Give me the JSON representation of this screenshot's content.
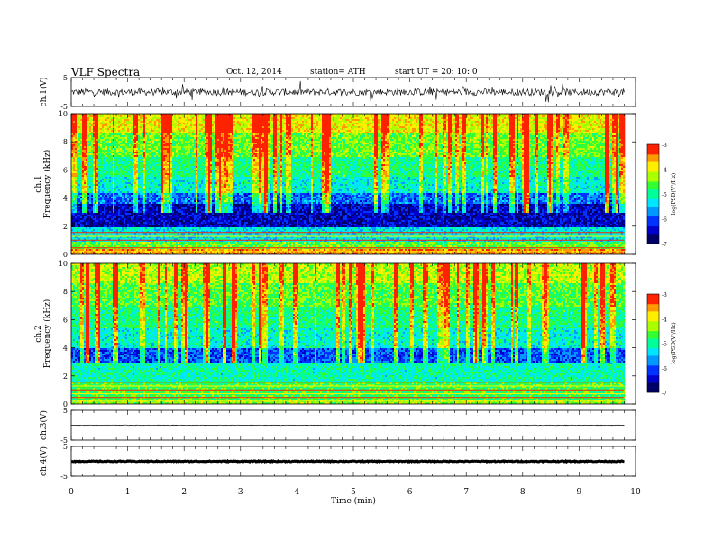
{
  "header": {
    "title": "VLF  Spectra",
    "date": "Oct. 12, 2014",
    "station": "station= ATH",
    "start": "start  UT  =   20: 10: 0"
  },
  "chart_data": [
    {
      "id": "ch1-waveform",
      "type": "line",
      "ylabel": "ch.1(V)",
      "ylim": [
        -5,
        5
      ],
      "yticks": [
        "5",
        "-5"
      ],
      "xlim": [
        0,
        10
      ],
      "data_xrange": [
        0,
        9.8
      ],
      "baseline": 0,
      "noise_amplitude": 1.2
    },
    {
      "id": "ch1-spectrogram",
      "type": "heatmap",
      "ylabel": "ch.1\nFrequency  (kHz)",
      "ylim": [
        0,
        10
      ],
      "yticks": [
        "0",
        "2",
        "4",
        "6",
        "8",
        "10"
      ],
      "xlim": [
        0,
        10
      ],
      "data_xrange": [
        0,
        9.8
      ],
      "colorbar": {
        "label": "log(PSD(V²/Hz)",
        "range": [
          -7,
          -3
        ],
        "ticks": [
          "-3",
          "-4",
          "-5",
          "-6",
          "-7"
        ]
      },
      "bands": [
        {
          "from": 0,
          "to": 0.4,
          "level": -3.5
        },
        {
          "from": 0.4,
          "to": 1.0,
          "level": -4.5
        },
        {
          "from": 1.0,
          "to": 2.0,
          "level": -5.3
        },
        {
          "from": 2.0,
          "to": 3.6,
          "level": -6.5
        },
        {
          "from": 3.6,
          "to": 4.4,
          "level": -5.9
        },
        {
          "from": 4.4,
          "to": 5.6,
          "level": -5.2
        },
        {
          "from": 5.6,
          "to": 7.0,
          "level": -4.9
        },
        {
          "from": 7.0,
          "to": 8.6,
          "level": -4.5
        },
        {
          "from": 8.6,
          "to": 10.0,
          "level": -4.0
        }
      ]
    },
    {
      "id": "ch2-spectrogram",
      "type": "heatmap",
      "ylabel": "ch.2\nFrequency  (kHz)",
      "ylim": [
        0,
        10
      ],
      "yticks": [
        "0",
        "2",
        "4",
        "6",
        "8",
        "10"
      ],
      "xlim": [
        0,
        10
      ],
      "data_xrange": [
        0,
        9.8
      ],
      "colorbar": {
        "label": "log(PSD(V²/Hz)",
        "range": [
          -7,
          -3
        ],
        "ticks": [
          "-3",
          "-4",
          "-5",
          "-6",
          "-7"
        ]
      },
      "bands": [
        {
          "from": 0,
          "to": 0.3,
          "level": -4.4
        },
        {
          "from": 0.3,
          "to": 1.6,
          "level": -4.7
        },
        {
          "from": 1.6,
          "to": 3.0,
          "level": -5.1
        },
        {
          "from": 3.0,
          "to": 4.0,
          "level": -6.0
        },
        {
          "from": 4.0,
          "to": 5.4,
          "level": -5.2
        },
        {
          "from": 5.4,
          "to": 7.0,
          "level": -4.9
        },
        {
          "from": 7.0,
          "to": 8.6,
          "level": -4.6
        },
        {
          "from": 8.6,
          "to": 10.0,
          "level": -4.2
        }
      ]
    },
    {
      "id": "ch3-waveform",
      "type": "line",
      "ylabel": "ch.3(V)",
      "ylim": [
        -5,
        5
      ],
      "yticks": [
        "5",
        "-5"
      ],
      "xlim": [
        0,
        10
      ],
      "data_xrange": [
        0,
        9.8
      ],
      "baseline": 0,
      "noise_amplitude": 0.1
    },
    {
      "id": "ch4-waveform",
      "type": "line",
      "ylabel": "ch.4(V)",
      "ylim": [
        -5,
        5
      ],
      "yticks": [
        "5",
        "-5"
      ],
      "xlim": [
        0,
        10
      ],
      "data_xrange": [
        0,
        9.8
      ],
      "baseline": 0,
      "noise_amplitude": 0.15
    }
  ],
  "xaxis": {
    "label": "Time  (min)",
    "ticks": [
      "0",
      "1",
      "2",
      "3",
      "4",
      "5",
      "6",
      "7",
      "8",
      "9",
      "10"
    ]
  },
  "colors": {
    "colormap": [
      "#000066",
      "#0000cc",
      "#0033ff",
      "#0099ff",
      "#00e5ff",
      "#00ff99",
      "#33ff33",
      "#aaff00",
      "#ffee00",
      "#ff9900",
      "#ff2200",
      "#ffffff"
    ]
  }
}
